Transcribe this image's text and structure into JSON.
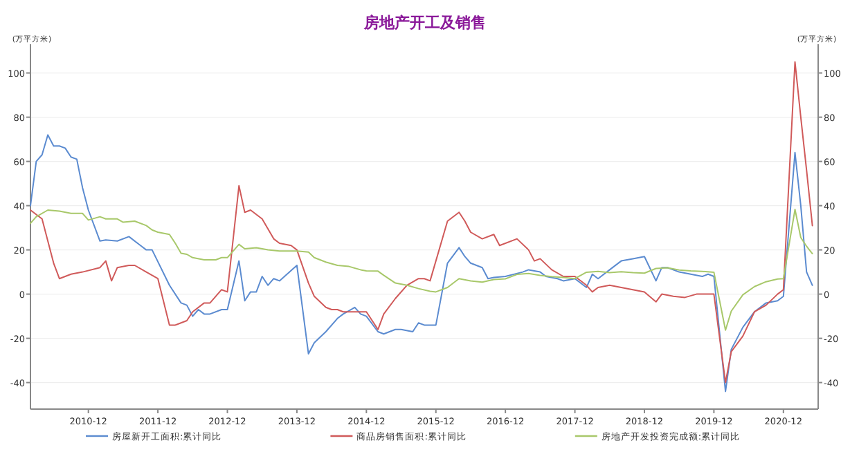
{
  "chart_data": {
    "type": "line",
    "title": "房地产开工及销售",
    "ylabel": "(万平方米)",
    "y2label": "(万平方米)",
    "xlim": [
      "2010-02",
      "2021-06"
    ],
    "xticks": [
      {
        "value": "2010-12",
        "label": "2010-12"
      },
      {
        "value": "2011-12",
        "label": "2011-12"
      },
      {
        "value": "2012-12",
        "label": "2012-12"
      },
      {
        "value": "2013-12",
        "label": "2013-12"
      },
      {
        "value": "2014-12",
        "label": "2014-12"
      },
      {
        "value": "2015-12",
        "label": "2015-12"
      },
      {
        "value": "2016-12",
        "label": "2016-12"
      },
      {
        "value": "2017-12",
        "label": "2017-12"
      },
      {
        "value": "2018-12",
        "label": "2018-12"
      },
      {
        "value": "2019-12",
        "label": "2019-12"
      },
      {
        "value": "2020-12",
        "label": "2020-12"
      }
    ],
    "ylim": [
      -52,
      113
    ],
    "yticks": [
      -40,
      -20,
      0,
      20,
      40,
      60,
      80,
      100
    ],
    "y2lim": [
      -52,
      113
    ],
    "y2ticks": [
      -40,
      -20,
      0,
      20,
      40,
      60,
      80,
      100
    ],
    "grid": "y",
    "legend": "bottom",
    "marker": "none",
    "line_style": "solid",
    "series": [
      {
        "name": "房屋新开工面积:累计同比",
        "color": "#5b8bd0",
        "x": [
          "2010-02",
          "2010-03",
          "2010-04",
          "2010-05",
          "2010-06",
          "2010-07",
          "2010-08",
          "2010-09",
          "2010-10",
          "2010-11",
          "2010-12",
          "2011-02",
          "2011-03",
          "2011-05",
          "2011-07",
          "2011-09",
          "2011-10",
          "2011-11",
          "2012-02",
          "2012-04",
          "2012-05",
          "2012-06",
          "2012-07",
          "2012-08",
          "2012-09",
          "2012-11",
          "2012-12",
          "2013-02",
          "2013-03",
          "2013-04",
          "2013-05",
          "2013-06",
          "2013-07",
          "2013-08",
          "2013-09",
          "2013-12",
          "2014-02",
          "2014-03",
          "2014-05",
          "2014-07",
          "2014-08",
          "2014-10",
          "2014-11",
          "2014-12",
          "2015-02",
          "2015-03",
          "2015-05",
          "2015-06",
          "2015-08",
          "2015-09",
          "2015-10",
          "2015-11",
          "2015-12",
          "2016-02",
          "2016-04",
          "2016-05",
          "2016-06",
          "2016-08",
          "2016-09",
          "2016-10",
          "2016-12",
          "2017-03",
          "2017-04",
          "2017-06",
          "2017-07",
          "2017-09",
          "2017-10",
          "2017-12",
          "2018-02",
          "2018-03",
          "2018-04",
          "2018-06",
          "2018-08",
          "2018-10",
          "2018-12",
          "2019-02",
          "2019-03",
          "2019-04",
          "2019-06",
          "2019-08",
          "2019-10",
          "2019-11",
          "2019-12",
          "2020-02",
          "2020-03",
          "2020-05",
          "2020-07",
          "2020-09",
          "2020-11",
          "2020-12",
          "2021-02",
          "2021-03",
          "2021-04",
          "2021-05"
        ],
        "values": [
          40,
          60,
          63,
          72,
          67,
          67,
          66,
          62,
          61,
          48,
          38,
          24,
          24.5,
          24,
          26,
          22,
          20,
          20,
          4,
          -4,
          -5,
          -10,
          -7,
          -9,
          -9,
          -7,
          -7,
          15,
          -3,
          1,
          1,
          8,
          4,
          7,
          6,
          13,
          -27,
          -22,
          -17,
          -11,
          -9,
          -6,
          -9,
          -10,
          -17,
          -18,
          -16,
          -16,
          -17,
          -13,
          -14,
          -14,
          -14,
          14,
          21,
          17,
          14,
          12,
          7,
          7.5,
          8,
          10,
          11,
          10,
          8,
          7,
          6,
          7,
          3,
          9,
          7,
          11,
          15,
          16,
          17,
          6,
          12,
          12,
          10,
          9,
          8,
          9,
          8,
          -44,
          -25,
          -15,
          -8,
          -4,
          -3,
          -1,
          64,
          40,
          10,
          4
        ]
      },
      {
        "name": "商品房销售面积:累计同比",
        "color": "#d05a5a",
        "x": [
          "2010-02",
          "2010-04",
          "2010-05",
          "2010-06",
          "2010-07",
          "2010-09",
          "2010-11",
          "2011-02",
          "2011-03",
          "2011-04",
          "2011-05",
          "2011-07",
          "2011-08",
          "2011-10",
          "2011-12",
          "2012-02",
          "2012-03",
          "2012-05",
          "2012-06",
          "2012-08",
          "2012-09",
          "2012-11",
          "2012-12",
          "2013-02",
          "2013-03",
          "2013-04",
          "2013-06",
          "2013-08",
          "2013-09",
          "2013-11",
          "2013-12",
          "2014-02",
          "2014-03",
          "2014-05",
          "2014-06",
          "2014-07",
          "2014-08",
          "2014-10",
          "2014-12",
          "2015-02",
          "2015-03",
          "2015-05",
          "2015-07",
          "2015-09",
          "2015-10",
          "2015-11",
          "2016-02",
          "2016-04",
          "2016-05",
          "2016-06",
          "2016-08",
          "2016-10",
          "2016-11",
          "2017-02",
          "2017-04",
          "2017-05",
          "2017-06",
          "2017-08",
          "2017-10",
          "2017-12",
          "2018-02",
          "2018-03",
          "2018-04",
          "2018-06",
          "2018-08",
          "2018-10",
          "2018-12",
          "2019-02",
          "2019-03",
          "2019-05",
          "2019-07",
          "2019-09",
          "2019-11",
          "2019-12",
          "2020-02",
          "2020-03",
          "2020-05",
          "2020-07",
          "2020-09",
          "2020-11",
          "2020-12",
          "2021-02",
          "2021-03",
          "2021-04",
          "2021-05"
        ],
        "values": [
          38,
          34,
          24,
          14,
          7,
          9,
          10,
          12,
          15,
          6,
          12,
          13,
          13,
          10,
          7,
          -14,
          -14,
          -12,
          -8,
          -4,
          -4,
          2,
          1,
          49,
          37,
          38,
          34,
          25,
          23,
          22,
          20,
          5,
          -1,
          -6,
          -7,
          -7,
          -8,
          -8,
          -8,
          -16,
          -9,
          -2,
          4,
          7,
          7,
          6,
          33,
          37,
          33,
          28,
          25,
          27,
          22,
          25,
          20,
          15,
          16,
          11,
          8,
          8,
          4,
          1,
          3,
          4,
          3,
          2,
          1,
          -3.5,
          0,
          -1,
          -1.5,
          0,
          0,
          0,
          -40,
          -26,
          -19,
          -8,
          -5,
          0,
          2,
          105,
          80,
          56,
          31
        ]
      },
      {
        "name": "房地产开发投资完成额:累计同比",
        "color": "#a8c86a",
        "x": [
          "2010-02",
          "2010-03",
          "2010-05",
          "2010-07",
          "2010-09",
          "2010-11",
          "2010-12",
          "2011-02",
          "2011-03",
          "2011-05",
          "2011-06",
          "2011-08",
          "2011-10",
          "2011-11",
          "2011-12",
          "2012-02",
          "2012-03",
          "2012-04",
          "2012-05",
          "2012-06",
          "2012-08",
          "2012-10",
          "2012-11",
          "2012-12",
          "2013-02",
          "2013-03",
          "2013-05",
          "2013-07",
          "2013-09",
          "2013-11",
          "2013-12",
          "2014-02",
          "2014-03",
          "2014-05",
          "2014-07",
          "2014-09",
          "2014-11",
          "2014-12",
          "2015-02",
          "2015-03",
          "2015-05",
          "2015-07",
          "2015-09",
          "2015-11",
          "2015-12",
          "2016-02",
          "2016-04",
          "2016-06",
          "2016-08",
          "2016-10",
          "2016-12",
          "2017-02",
          "2017-04",
          "2017-06",
          "2017-08",
          "2017-10",
          "2017-12",
          "2018-02",
          "2018-04",
          "2018-06",
          "2018-08",
          "2018-10",
          "2018-12",
          "2019-02",
          "2019-04",
          "2019-06",
          "2019-08",
          "2019-10",
          "2019-12",
          "2020-02",
          "2020-03",
          "2020-05",
          "2020-07",
          "2020-09",
          "2020-11",
          "2020-12",
          "2021-02",
          "2021-03",
          "2021-04",
          "2021-05"
        ],
        "values": [
          32,
          35,
          38,
          37.5,
          36.5,
          36.5,
          33.5,
          35,
          34,
          34,
          32.5,
          33,
          31,
          29,
          28,
          27,
          23,
          18.5,
          18,
          16.5,
          15.5,
          15.5,
          16.5,
          16.5,
          22.5,
          20.5,
          21,
          20,
          19.5,
          19.5,
          19.5,
          19,
          16.5,
          14.5,
          13,
          12.5,
          11,
          10.5,
          10.4,
          8.5,
          5,
          4,
          2.5,
          1.3,
          1,
          3,
          7,
          6,
          5.4,
          6.6,
          6.9,
          8.9,
          9.3,
          8.5,
          7.9,
          7.5,
          7,
          9.9,
          10.3,
          9.7,
          10.1,
          9.7,
          9.5,
          11.6,
          11.9,
          10.9,
          10.5,
          10.3,
          9.9,
          -16.3,
          -7.7,
          -0.3,
          3.4,
          5.6,
          6.8,
          7,
          38.3,
          25.6,
          21.6,
          18.3
        ]
      }
    ]
  }
}
